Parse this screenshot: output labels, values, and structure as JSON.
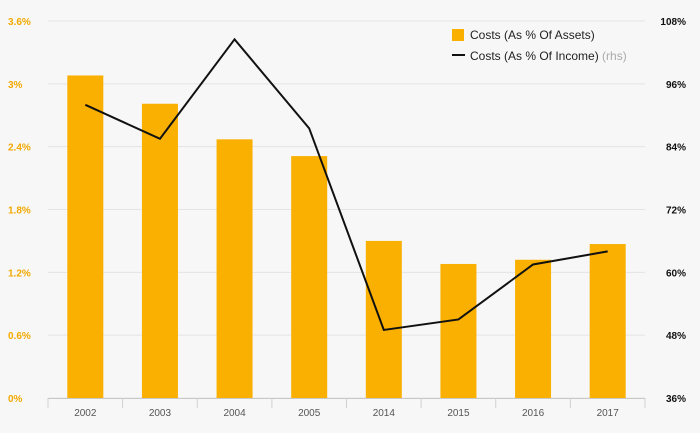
{
  "chart_data": {
    "type": "bar",
    "categories": [
      "2002",
      "2003",
      "2004",
      "2005",
      "2014",
      "2015",
      "2016",
      "2017"
    ],
    "series": [
      {
        "name": "Costs (As % Of Assets)",
        "type": "bar",
        "axis": "left",
        "color": "#f9b000",
        "values": [
          3.08,
          2.81,
          2.47,
          2.31,
          1.5,
          1.28,
          1.32,
          1.47
        ]
      },
      {
        "name": "Costs (As % Of Income)",
        "name_suffix": "(rhs)",
        "type": "line",
        "axis": "right",
        "color": "#111111",
        "values": [
          92,
          85.5,
          104.5,
          87.5,
          49,
          51,
          61.5,
          64
        ]
      }
    ],
    "y_left": {
      "ylim": [
        0,
        3.6
      ],
      "ticks": [
        0,
        0.6,
        1.2,
        1.8,
        2.4,
        3.0,
        3.6
      ],
      "tick_labels": [
        "0%",
        "0.6%",
        "1.2%",
        "1.8%",
        "2.4%",
        "3%",
        "3.6%"
      ],
      "color": "#f2a900"
    },
    "y_right": {
      "ylim": [
        36,
        108
      ],
      "ticks": [
        36,
        48,
        60,
        72,
        84,
        96,
        108
      ],
      "tick_labels": [
        "36%",
        "48%",
        "60%",
        "72%",
        "84%",
        "96%",
        "108%"
      ],
      "color": "#111111"
    },
    "grid": true,
    "legend_position": "top-right",
    "title": "",
    "xlabel": "",
    "ylabel": ""
  }
}
